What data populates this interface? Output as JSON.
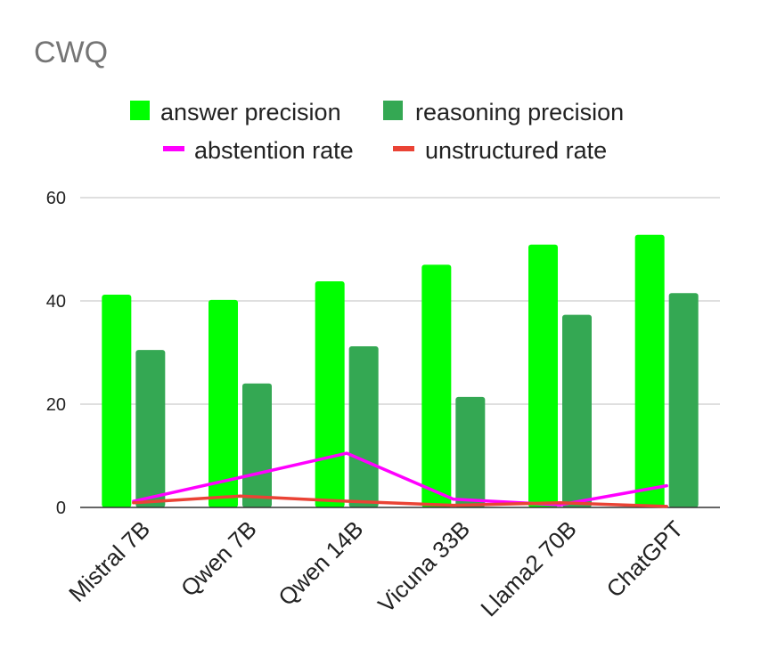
{
  "chart_data": {
    "type": "bar",
    "title": "CWQ",
    "categories": [
      "Mistral 7B",
      "Qwen 7B",
      "Qwen 14B",
      "Vicuna  33B",
      "Llama2 70B",
      "ChatGPT"
    ],
    "series": [
      {
        "name": "answer precision",
        "kind": "bar",
        "color": "#00ff00",
        "values": [
          41.2,
          40.2,
          43.8,
          47.0,
          50.9,
          52.8
        ]
      },
      {
        "name": "reasoning precision",
        "kind": "bar",
        "color": "#34a853",
        "values": [
          30.5,
          24.0,
          31.2,
          21.4,
          37.3,
          41.5
        ]
      },
      {
        "name": "abstention rate",
        "kind": "line",
        "color": "#ff00ff",
        "values": [
          1.2,
          5.8,
          10.5,
          1.6,
          0.5,
          4.2
        ]
      },
      {
        "name": "unstructured rate",
        "kind": "line",
        "color": "#ea4335",
        "values": [
          0.9,
          2.2,
          1.2,
          0.4,
          0.9,
          0.2
        ]
      }
    ],
    "yticks": [
      "0",
      "20",
      "40",
      "60"
    ],
    "ylim": [
      0,
      60
    ],
    "grid": true,
    "legend_position": "top"
  }
}
